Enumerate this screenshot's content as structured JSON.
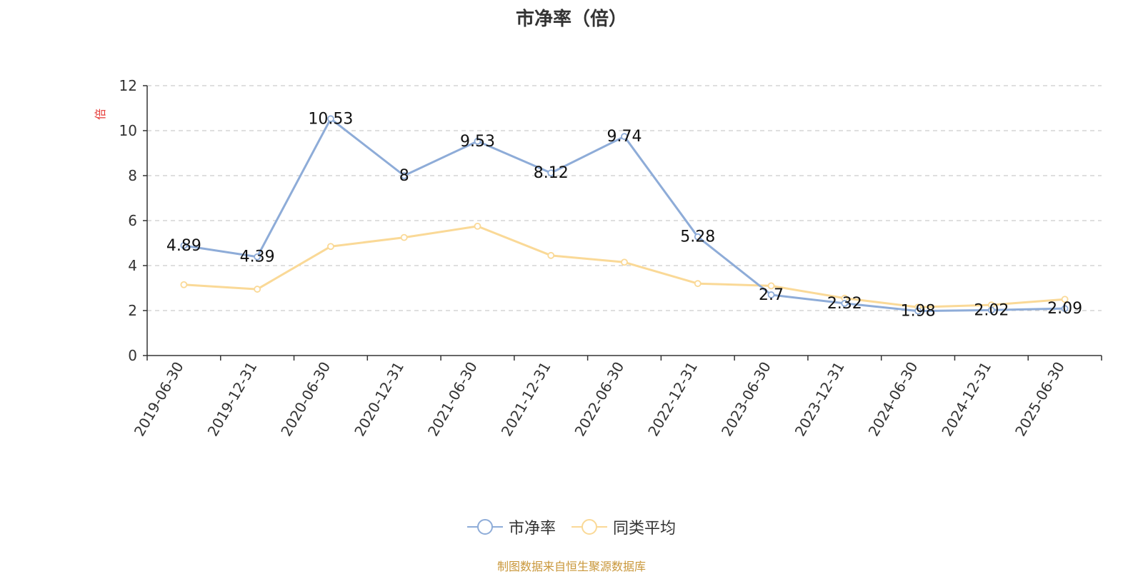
{
  "chart_data": {
    "type": "line",
    "title": "市净率（倍）",
    "ylabel": "倍",
    "ylim": [
      0,
      12
    ],
    "yticks": [
      0,
      2,
      4,
      6,
      8,
      10,
      12
    ],
    "grid": true,
    "legend_position": "bottom-center",
    "categories": [
      "2019-06-30",
      "2019-12-31",
      "2020-06-30",
      "2020-12-31",
      "2021-06-30",
      "2021-12-31",
      "2022-06-30",
      "2022-12-31",
      "2023-06-30",
      "2023-12-31",
      "2024-06-30",
      "2024-12-31",
      "2025-06-30"
    ],
    "series": [
      {
        "name": "市净率",
        "color": "#8eacd8",
        "values": [
          4.89,
          4.39,
          10.53,
          8,
          9.53,
          8.12,
          9.74,
          5.28,
          2.7,
          2.32,
          1.98,
          2.02,
          2.09
        ],
        "labels": [
          "4.89",
          "4.39",
          "10.53",
          "8",
          "9.53",
          "8.12",
          "9.74",
          "5.28",
          "2.7",
          "2.32",
          "1.98",
          "2.02",
          "2.09"
        ]
      },
      {
        "name": "同类平均",
        "color": "#fad997",
        "values": [
          3.15,
          2.95,
          4.85,
          5.25,
          5.75,
          4.45,
          4.15,
          3.2,
          3.1,
          2.55,
          2.15,
          2.25,
          2.5
        ]
      }
    ]
  },
  "footer": "制图数据来自恒生聚源数据库"
}
